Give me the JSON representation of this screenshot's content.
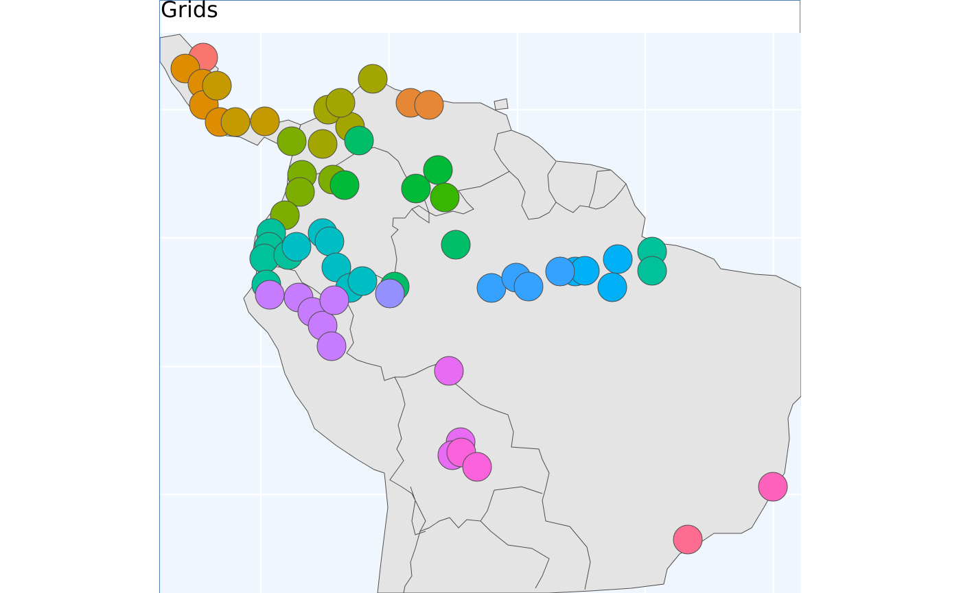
{
  "title": "Grids",
  "colors": {
    "sea": "#eff6fd",
    "grid": "#ffffff",
    "land": "#e4e4e4",
    "border": "#4d4d4d"
  },
  "gridlines": {
    "vertical": [
      380,
      567,
      754,
      940,
      1127
    ],
    "horizontal": [
      160,
      347,
      535,
      721
    ]
  },
  "clusters": [
    {
      "id": "c01",
      "color": "#f8766d",
      "points": [
        [
          296,
          84
        ]
      ]
    },
    {
      "id": "c02",
      "color": "#de8c00",
      "points": [
        [
          270,
          100
        ],
        [
          295,
          122
        ],
        [
          297,
          153
        ],
        [
          320,
          178
        ]
      ]
    },
    {
      "id": "c03",
      "color": "#c49a00",
      "points": [
        [
          316,
          125
        ],
        [
          343,
          178
        ],
        [
          386,
          177
        ]
      ]
    },
    {
      "id": "c04",
      "color": "#a3a500",
      "points": [
        [
          543,
          115
        ],
        [
          478,
          160
        ],
        [
          510,
          185
        ],
        [
          470,
          210
        ],
        [
          496,
          150
        ]
      ]
    },
    {
      "id": "c05",
      "color": "#e58735",
      "points": [
        [
          598,
          150
        ],
        [
          625,
          153
        ]
      ]
    },
    {
      "id": "c06",
      "color": "#7cae00",
      "points": [
        [
          425,
          206
        ],
        [
          440,
          255
        ],
        [
          437,
          280
        ],
        [
          485,
          262
        ],
        [
          415,
          314
        ]
      ]
    },
    {
      "id": "c07",
      "color": "#00ba38",
      "points": [
        [
          502,
          270
        ],
        [
          606,
          275
        ],
        [
          638,
          248
        ]
      ]
    },
    {
      "id": "c08",
      "color": "#39b600",
      "points": [
        [
          648,
          288
        ]
      ]
    },
    {
      "id": "c09",
      "color": "#00be67",
      "points": [
        [
          664,
          357
        ],
        [
          523,
          205
        ],
        [
          575,
          418
        ]
      ]
    },
    {
      "id": "c10",
      "color": "#00c19a",
      "points": [
        [
          395,
          340
        ],
        [
          392,
          360
        ],
        [
          385,
          377
        ],
        [
          420,
          372
        ],
        [
          388,
          415
        ],
        [
          950,
          367
        ],
        [
          950,
          395
        ]
      ]
    },
    {
      "id": "c11",
      "color": "#00bfc4",
      "points": [
        [
          432,
          360
        ],
        [
          470,
          340
        ],
        [
          480,
          352
        ],
        [
          490,
          390
        ],
        [
          510,
          420
        ],
        [
          528,
          410
        ]
      ]
    },
    {
      "id": "c12",
      "color": "#00b0f6",
      "points": [
        [
          838,
          396
        ],
        [
          852,
          395
        ],
        [
          900,
          378
        ],
        [
          892,
          419
        ]
      ]
    },
    {
      "id": "c13",
      "color": "#35a2ff",
      "points": [
        [
          716,
          420
        ],
        [
          752,
          405
        ],
        [
          770,
          418
        ],
        [
          816,
          396
        ]
      ]
    },
    {
      "id": "c14",
      "color": "#9590ff",
      "points": [
        [
          568,
          428
        ]
      ]
    },
    {
      "id": "c15",
      "color": "#c77cff",
      "points": [
        [
          435,
          434
        ],
        [
          455,
          455
        ],
        [
          470,
          475
        ],
        [
          483,
          505
        ],
        [
          487,
          438
        ],
        [
          393,
          430
        ]
      ]
    },
    {
      "id": "c16",
      "color": "#e76bf3",
      "points": [
        [
          654,
          541
        ],
        [
          671,
          645
        ],
        [
          659,
          664
        ]
      ]
    },
    {
      "id": "c17",
      "color": "#fa62db",
      "points": [
        [
          672,
          660
        ],
        [
          695,
          681
        ]
      ]
    },
    {
      "id": "c18",
      "color": "#ff62bc",
      "points": [
        [
          1126,
          710
        ]
      ]
    },
    {
      "id": "c19",
      "color": "#ff6c91",
      "points": [
        [
          1002,
          787
        ]
      ]
    }
  ]
}
